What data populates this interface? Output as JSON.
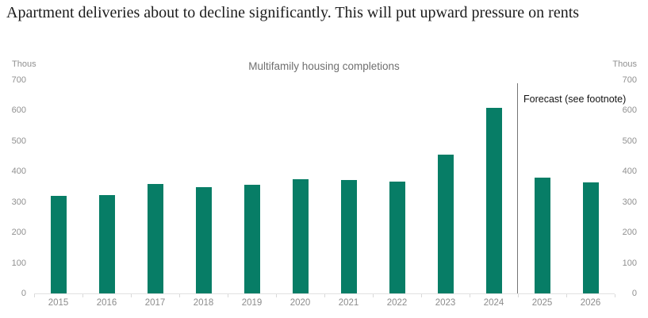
{
  "page_title": "Apartment deliveries about to decline significantly. This will put upward pressure on rents",
  "chart": {
    "title": "Multifamily housing completions",
    "unit_label": "Thous",
    "forecast_label": "Forecast (see footnote)",
    "colors": {
      "bar": "#077d66",
      "axis_text": "#909090",
      "chart_title_text": "#6f6f6f",
      "page_title_text": "#1c1c1c",
      "forecast_text": "#141414",
      "axis_line": "#e1e1e1",
      "divider_line": "#757575"
    }
  },
  "chart_data": {
    "type": "bar",
    "title": "Multifamily housing completions",
    "unit": "Thous",
    "categories": [
      "2015",
      "2016",
      "2017",
      "2018",
      "2019",
      "2020",
      "2021",
      "2022",
      "2023",
      "2024",
      "2025",
      "2026"
    ],
    "values": [
      320,
      324,
      358,
      348,
      357,
      375,
      371,
      368,
      455,
      608,
      380,
      365
    ],
    "ylim": [
      0,
      700
    ],
    "yticks": [
      0,
      100,
      200,
      300,
      400,
      500,
      600,
      700
    ],
    "y_axis_sides": [
      "left",
      "right"
    ],
    "grid": false,
    "legend": false,
    "divider_after_category": "2024",
    "forecast_categories": [
      "2025",
      "2026"
    ],
    "forecast_annotation": "Forecast (see footnote)"
  }
}
